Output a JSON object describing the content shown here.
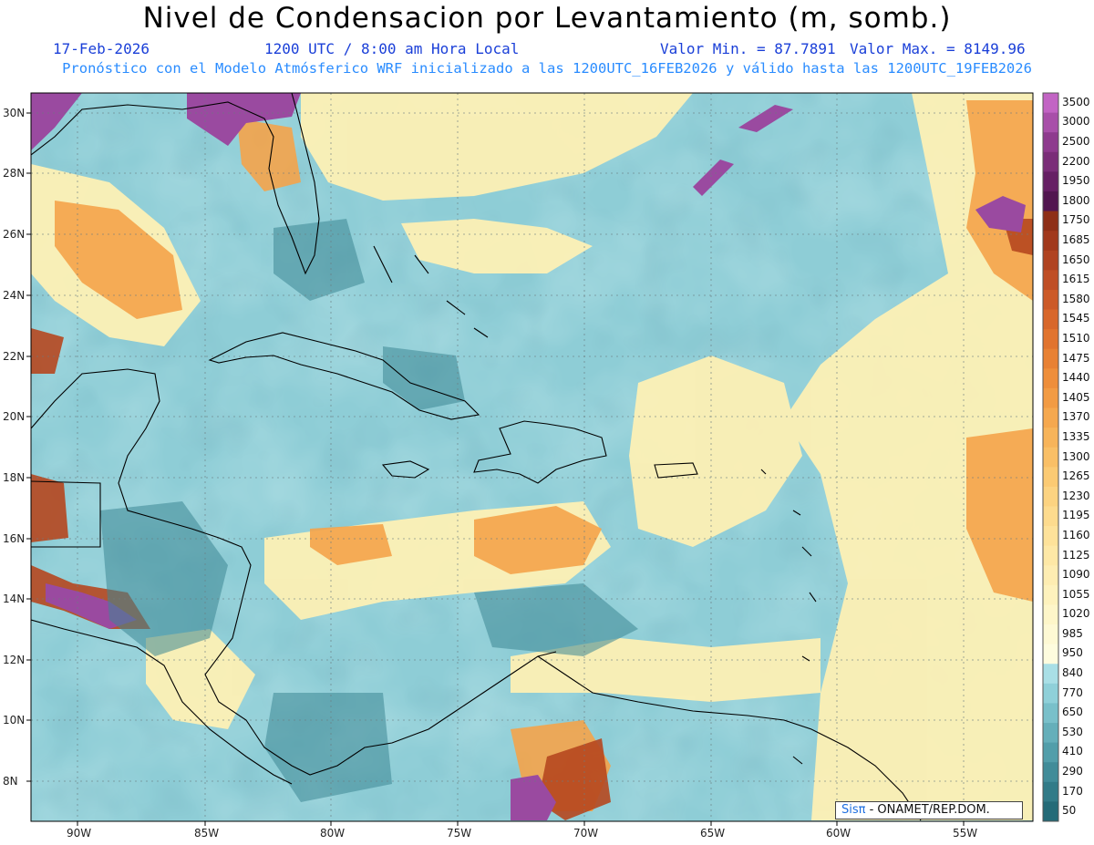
{
  "title": "Nivel de Condensacion por Levantamiento (m, somb.)",
  "date": "17-Feb-2026",
  "time": "1200 UTC / 8:00 am Hora Local",
  "valmin": "Valor Min. = 87.7891",
  "valmax": "Valor Max. = 8149.96",
  "forecast": "Pronóstico con el Modelo Atmósferico WRF inicializado a las 1200UTC_16FEB2026 y válido hasta las  1200UTC_19FEB2026",
  "lon_labels": [
    "90W",
    "85W",
    "80W",
    "75W",
    "70W",
    "65W",
    "60W",
    "55W"
  ],
  "lat_labels": [
    "30N",
    "28N",
    "26N",
    "24N",
    "22N",
    "20N",
    "18N",
    "16N",
    "14N",
    "12N",
    "10N",
    "8N"
  ],
  "colorbar": {
    "labels": [
      "3500",
      "3000",
      "2500",
      "2200",
      "1950",
      "1800",
      "1750",
      "1685",
      "1650",
      "1615",
      "1580",
      "1545",
      "1510",
      "1475",
      "1440",
      "1405",
      "1370",
      "1335",
      "1300",
      "1265",
      "1230",
      "1195",
      "1160",
      "1125",
      "1090",
      "1055",
      "1020",
      "985",
      "950",
      "840",
      "770",
      "650",
      "530",
      "410",
      "290",
      "170",
      "50"
    ],
    "colors": [
      "#c264c4",
      "#a84fa9",
      "#8e3a8e",
      "#7a2d78",
      "#661f64",
      "#521650",
      "#8e2f17",
      "#a1391c",
      "#b04321",
      "#bf4e25",
      "#cc5a28",
      "#d8672b",
      "#e1742f",
      "#e88134",
      "#ee8e3b",
      "#f29b44",
      "#f5a84f",
      "#f7b45a",
      "#f9bf66",
      "#fbca73",
      "#fcd381",
      "#fddb8e",
      "#fee29a",
      "#fee8a6",
      "#feedb2",
      "#fef2bd",
      "#fef6c9",
      "#fef9d4",
      "#fefcde",
      "#a9dfe6",
      "#8fd0d9",
      "#79c0ca",
      "#65afba",
      "#529eaa",
      "#418c99",
      "#327b88",
      "#246b78"
    ]
  },
  "credit": {
    "brand": "Sisπ",
    "org": " - ONAMET/REP.DOM."
  }
}
